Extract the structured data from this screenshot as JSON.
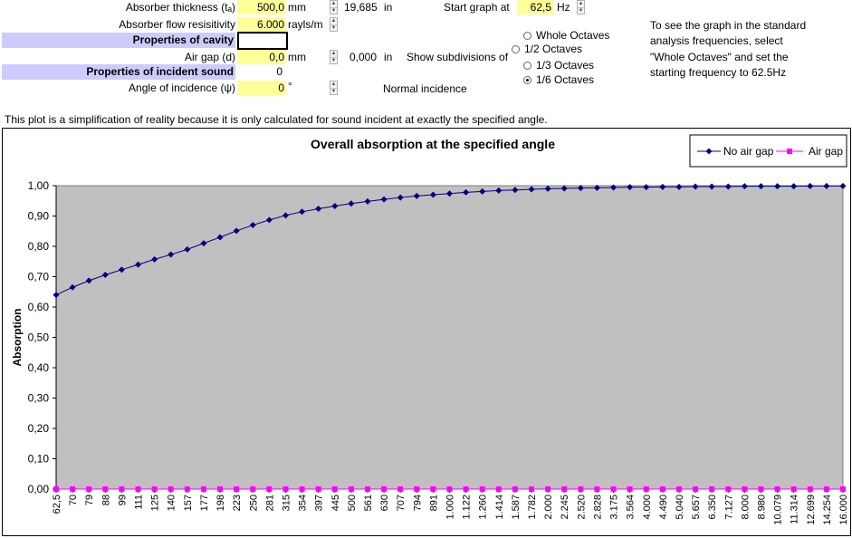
{
  "form": {
    "absorber_thickness": {
      "label": "Absorber thickness (tₐ)",
      "value": "500,0",
      "unit": "mm",
      "converted": "19,685",
      "converted_unit": "in"
    },
    "flow_resistivity": {
      "label": "Absorber flow resisitivity",
      "value": "6.000",
      "unit": "rayls/m"
    },
    "cavity_header": "Properties of cavity",
    "air_gap": {
      "label": "Air gap (d)",
      "value": "0,0",
      "unit": "mm",
      "converted": "0,000",
      "converted_unit": "in"
    },
    "incident_header": "Properties of incident sound",
    "incident_value": "0",
    "angle": {
      "label": "Angle of incidence (ψ)",
      "value": "0",
      "unit": "°",
      "note": "Normal incidence"
    },
    "start_graph": {
      "label": "Start graph at",
      "value": "62,5",
      "unit": "Hz"
    },
    "subdivisions_label": "Show subdivisions of",
    "subdivision_options": [
      "Whole Octaves",
      "1/2 Octaves",
      "1/3 Octaves",
      "1/6 Octaves"
    ],
    "selected_subdivision": "1/6 Octaves",
    "help_text": [
      "To see the graph in the standard",
      "analysis frequencies, select",
      "\"Whole Octaves\" and set the",
      "starting frequency to 62.5Hz"
    ]
  },
  "note": "This plot is a simplification of reality because it is only calculated for sound incident at exactly the specified angle.",
  "colors": {
    "header_fill": "#ccccff",
    "input_fill": "#ffff99",
    "plot_area": "#c0c0c0",
    "series1": "#000080",
    "series2": "#ff00ff"
  },
  "chart_data": {
    "type": "line",
    "title": "Overall absorption at the specified angle",
    "ylabel": "Absorption",
    "xlabel": "",
    "ylim": [
      0,
      1
    ],
    "yticks": [
      "0,00",
      "0,10",
      "0,20",
      "0,30",
      "0,40",
      "0,50",
      "0,60",
      "0,70",
      "0,80",
      "0,90",
      "1,00"
    ],
    "legend_position": "top-right",
    "categories": [
      "62,5",
      "70",
      "79",
      "88",
      "99",
      "111",
      "125",
      "140",
      "157",
      "177",
      "198",
      "223",
      "250",
      "281",
      "315",
      "354",
      "397",
      "445",
      "500",
      "561",
      "630",
      "707",
      "794",
      "891",
      "1.000",
      "1.122",
      "1.260",
      "1.414",
      "1.587",
      "1.782",
      "2.000",
      "2.245",
      "2.520",
      "2.828",
      "3.175",
      "3.564",
      "4.000",
      "4.490",
      "5.040",
      "5.657",
      "6.350",
      "7.127",
      "8.000",
      "8.980",
      "10.079",
      "11.314",
      "12.699",
      "14.254",
      "16.000"
    ],
    "series": [
      {
        "name": "No air gap",
        "marker": "diamond",
        "values": [
          0.64,
          0.665,
          0.687,
          0.706,
          0.723,
          0.74,
          0.757,
          0.773,
          0.79,
          0.81,
          0.83,
          0.851,
          0.87,
          0.887,
          0.902,
          0.914,
          0.924,
          0.933,
          0.941,
          0.948,
          0.955,
          0.961,
          0.966,
          0.97,
          0.974,
          0.978,
          0.981,
          0.984,
          0.986,
          0.988,
          0.99,
          0.991,
          0.992,
          0.993,
          0.994,
          0.995,
          0.995,
          0.996,
          0.996,
          0.997,
          0.997,
          0.997,
          0.998,
          0.998,
          0.998,
          0.998,
          0.999,
          0.999,
          0.999
        ]
      },
      {
        "name": "Air gap",
        "marker": "square",
        "values": [
          0,
          0,
          0,
          0,
          0,
          0,
          0,
          0,
          0,
          0,
          0,
          0,
          0,
          0,
          0,
          0,
          0,
          0,
          0,
          0,
          0,
          0,
          0,
          0,
          0,
          0,
          0,
          0,
          0,
          0,
          0,
          0,
          0,
          0,
          0,
          0,
          0,
          0,
          0,
          0,
          0,
          0,
          0,
          0,
          0,
          0,
          0,
          0,
          0
        ]
      }
    ]
  }
}
